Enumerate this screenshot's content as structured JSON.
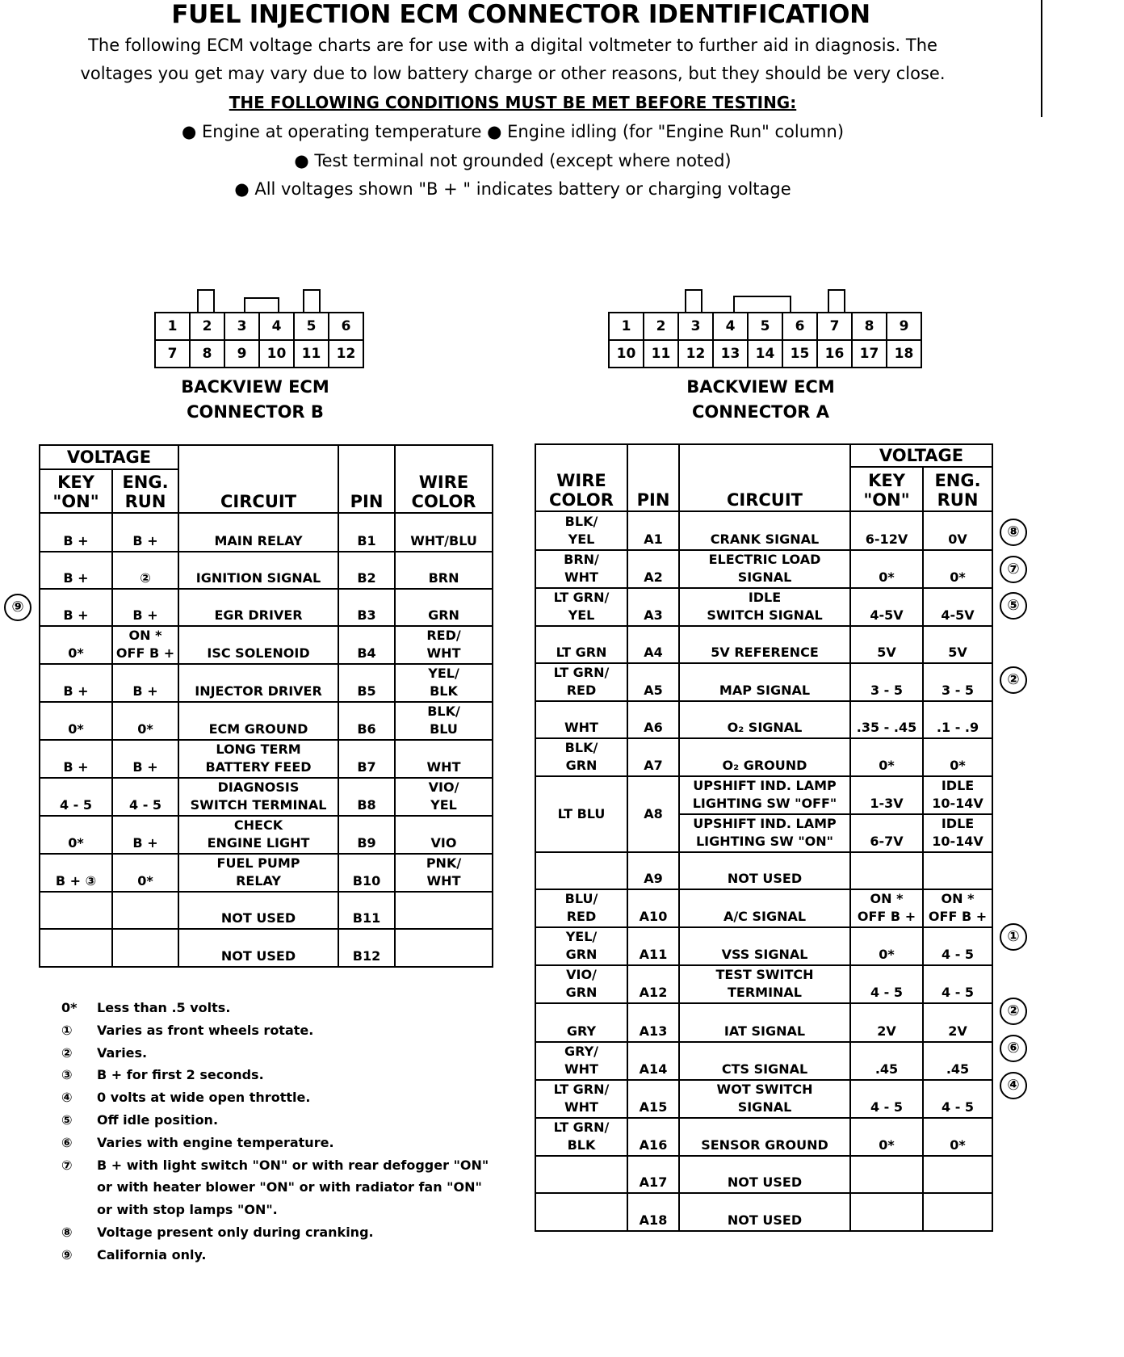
{
  "title": "FUEL INJECTION ECM CONNECTOR IDENTIFICATION",
  "intro": [
    "The following ECM voltage charts are for use with a digital voltmeter to further aid in diagnosis.  The",
    "voltages you get may vary due to low battery charge or other reasons, but they should be very close."
  ],
  "conditions_heading": "THE FOLLOWING CONDITIONS MUST BE MET BEFORE TESTING:",
  "conditions": [
    "● Engine at operating temperature  ● Engine idling (for \"Engine Run\" column)",
    "● Test terminal not grounded (except where noted)",
    "● All voltages shown \"B + \" indicates battery or charging voltage"
  ],
  "connector_b": {
    "label": "BACKVIEW ECM\nCONNECTOR  B",
    "top": [
      "1",
      "2",
      "3",
      "4",
      "5",
      "6"
    ],
    "bottom": [
      "7",
      "8",
      "9",
      "10",
      "11",
      "12"
    ]
  },
  "connector_a": {
    "label": "BACKVIEW ECM\nCONNECTOR  A",
    "top": [
      "1",
      "2",
      "3",
      "4",
      "5",
      "6",
      "7",
      "8",
      "9"
    ],
    "bottom": [
      "10",
      "11",
      "12",
      "13",
      "14",
      "15",
      "16",
      "17",
      "18"
    ]
  },
  "table_b": {
    "headers": {
      "voltage": "VOLTAGE",
      "key_on": "KEY\n\"ON\"",
      "eng_run": "ENG.\nRUN",
      "circuit": "CIRCUIT",
      "pin": "PIN",
      "wire_color": "WIRE\nCOLOR"
    },
    "rows": [
      {
        "key_on": "B +",
        "eng_run": "B +",
        "circuit": "MAIN RELAY",
        "pin": "B1",
        "wire": "WHT/BLU"
      },
      {
        "key_on": "B +",
        "eng_run": "②",
        "circuit": "IGNITION SIGNAL",
        "pin": "B2",
        "wire": "BRN"
      },
      {
        "key_on": "B +",
        "eng_run": "B +",
        "circuit": "EGR DRIVER",
        "pin": "B3",
        "wire": "GRN",
        "note": "⑨"
      },
      {
        "key_on": "0*",
        "eng_run": "ON *\nOFF B +",
        "circuit": "ISC SOLENOID",
        "pin": "B4",
        "wire": "RED/\nWHT"
      },
      {
        "key_on": "B +",
        "eng_run": "B +",
        "circuit": "INJECTOR DRIVER",
        "pin": "B5",
        "wire": "YEL/\nBLK"
      },
      {
        "key_on": "0*",
        "eng_run": "0*",
        "circuit": "ECM GROUND",
        "pin": "B6",
        "wire": "BLK/\nBLU"
      },
      {
        "key_on": "B +",
        "eng_run": "B +",
        "circuit": "LONG TERM\nBATTERY FEED",
        "pin": "B7",
        "wire": "WHT"
      },
      {
        "key_on": "4 - 5",
        "eng_run": "4 - 5",
        "circuit": "DIAGNOSIS\nSWITCH TERMINAL",
        "pin": "B8",
        "wire": "VIO/\nYEL"
      },
      {
        "key_on": "0*",
        "eng_run": "B +",
        "circuit": "CHECK\nENGINE LIGHT",
        "pin": "B9",
        "wire": "VIO"
      },
      {
        "key_on": "B +  ③",
        "eng_run": "0*",
        "circuit": "FUEL PUMP\nRELAY",
        "pin": "B10",
        "wire": "PNK/\nWHT"
      },
      {
        "key_on": "",
        "eng_run": "",
        "circuit": "NOT USED",
        "pin": "B11",
        "wire": ""
      },
      {
        "key_on": "",
        "eng_run": "",
        "circuit": "NOT USED",
        "pin": "B12",
        "wire": ""
      }
    ]
  },
  "table_a": {
    "headers": {
      "voltage": "VOLTAGE",
      "key_on": "KEY\n\"ON\"",
      "eng_run": "ENG.\nRUN",
      "circuit": "CIRCUIT",
      "pin": "PIN",
      "wire_color": "WIRE\nCOLOR"
    },
    "rows": [
      {
        "wire": "BLK/\nYEL",
        "pin": "A1",
        "circuit": "CRANK SIGNAL",
        "key_on": "6-12V",
        "eng_run": "0V",
        "note": "⑧"
      },
      {
        "wire": "BRN/\nWHT",
        "pin": "A2",
        "circuit": "ELECTRIC LOAD\nSIGNAL",
        "key_on": "0*",
        "eng_run": "0*",
        "note": "⑦"
      },
      {
        "wire": "LT GRN/\nYEL",
        "pin": "A3",
        "circuit": "IDLE\nSWITCH SIGNAL",
        "key_on": "4-5V",
        "eng_run": "4-5V",
        "note": "⑤"
      },
      {
        "wire": "LT GRN",
        "pin": "A4",
        "circuit": "5V REFERENCE",
        "key_on": "5V",
        "eng_run": "5V"
      },
      {
        "wire": "LT GRN/\nRED",
        "pin": "A5",
        "circuit": "MAP SIGNAL",
        "key_on": "3 - 5",
        "eng_run": "3 - 5",
        "note": "②"
      },
      {
        "wire": "WHT",
        "pin": "A6",
        "circuit": "O₂ SIGNAL",
        "key_on": ".35 - .45",
        "eng_run": ".1 - .9"
      },
      {
        "wire": "BLK/\nGRN",
        "pin": "A7",
        "circuit": "O₂ GROUND",
        "key_on": "0*",
        "eng_run": "0*"
      },
      {
        "wire": "LT BLU",
        "pin": "A8",
        "sub": [
          {
            "circuit": "UPSHIFT IND. LAMP\nLIGHTING SW \"OFF\"",
            "key_on": "1-3V",
            "eng_run": "IDLE\n10-14V"
          },
          {
            "circuit": "UPSHIFT IND. LAMP\nLIGHTING SW \"ON\"",
            "key_on": "6-7V",
            "eng_run": "IDLE\n10-14V"
          }
        ]
      },
      {
        "wire": "",
        "pin": "A9",
        "circuit": "NOT USED",
        "key_on": "",
        "eng_run": ""
      },
      {
        "wire": "BLU/\nRED",
        "pin": "A10",
        "circuit": "A/C SIGNAL",
        "key_on": "ON *\nOFF B +",
        "eng_run": "ON *\nOFF B +"
      },
      {
        "wire": "YEL/\nGRN",
        "pin": "A11",
        "circuit": "VSS SIGNAL",
        "key_on": "0*",
        "eng_run": "4 - 5",
        "note": "①"
      },
      {
        "wire": "VIO/\nGRN",
        "pin": "A12",
        "circuit": "TEST SWITCH\nTERMINAL",
        "key_on": "4 - 5",
        "eng_run": "4 - 5"
      },
      {
        "wire": "GRY",
        "pin": "A13",
        "circuit": "IAT SIGNAL",
        "key_on": "2V",
        "eng_run": "2V",
        "note": "②"
      },
      {
        "wire": "GRY/\nWHT",
        "pin": "A14",
        "circuit": "CTS SIGNAL",
        "key_on": ".45",
        "eng_run": ".45",
        "note": "⑥"
      },
      {
        "wire": "LT GRN/\nWHT",
        "pin": "A15",
        "circuit": "WOT SWITCH\nSIGNAL",
        "key_on": "4 - 5",
        "eng_run": "4 - 5",
        "note": "④"
      },
      {
        "wire": "LT GRN/\nBLK",
        "pin": "A16",
        "circuit": "SENSOR GROUND",
        "key_on": "0*",
        "eng_run": "0*"
      },
      {
        "wire": "",
        "pin": "A17",
        "circuit": "NOT USED",
        "key_on": "",
        "eng_run": ""
      },
      {
        "wire": "",
        "pin": "A18",
        "circuit": "NOT USED",
        "key_on": "",
        "eng_run": ""
      }
    ]
  },
  "footnotes": [
    {
      "sym": "0*",
      "text": "Less than .5 volts."
    },
    {
      "sym": "①",
      "text": "Varies as front wheels rotate."
    },
    {
      "sym": "②",
      "text": "Varies."
    },
    {
      "sym": "③",
      "text": "B + for first 2 seconds."
    },
    {
      "sym": "④",
      "text": "0 volts at wide open throttle."
    },
    {
      "sym": "⑤",
      "text": "Off idle position."
    },
    {
      "sym": "⑥",
      "text": "Varies with engine temperature."
    },
    {
      "sym": "⑦",
      "text": "B + with light switch \"ON\" or with rear defogger \"ON\""
    },
    {
      "sym": "",
      "text": "or with heater blower \"ON\" or with radiator fan \"ON\""
    },
    {
      "sym": "",
      "text": "or with stop lamps \"ON\"."
    },
    {
      "sym": "⑧",
      "text": "Voltage present only during cranking."
    },
    {
      "sym": "⑨",
      "text": "California only."
    }
  ]
}
